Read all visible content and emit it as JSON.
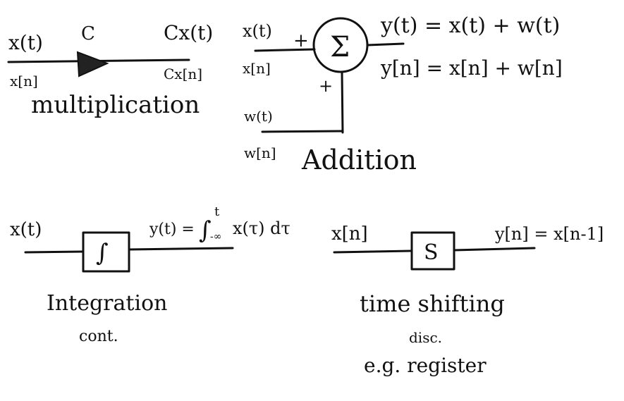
{
  "multiplication": {
    "in_ct": "x(t)",
    "in_dt": "x[n]",
    "gain": "C",
    "out_ct": "Cx(t)",
    "out_dt": "Cx[n]",
    "caption": "multiplication"
  },
  "addition": {
    "in1_ct": "x(t)",
    "in1_dt": "x[n]",
    "in2_ct": "w(t)",
    "in2_dt": "w[n]",
    "plus_top": "+",
    "plus_bottom": "+",
    "symbol": "Σ",
    "eq_ct": "y(t) = x(t) + w(t)",
    "eq_dt": "y[n] = x[n] + w[n]",
    "caption": "Addition"
  },
  "integration": {
    "input": "x(t)",
    "symbol": "∫",
    "eq_lhs": "y(t) =",
    "eq_int": "∫",
    "eq_upper": "t",
    "eq_lower": "-∞",
    "eq_rhs": "x(τ) dτ",
    "caption": "Integration",
    "note": "cont."
  },
  "time_shift": {
    "input": "x[n]",
    "symbol": "S",
    "eq": "y[n] = x[n-1]",
    "caption": "time shifting",
    "note": "disc.",
    "example": "e.g. register"
  }
}
